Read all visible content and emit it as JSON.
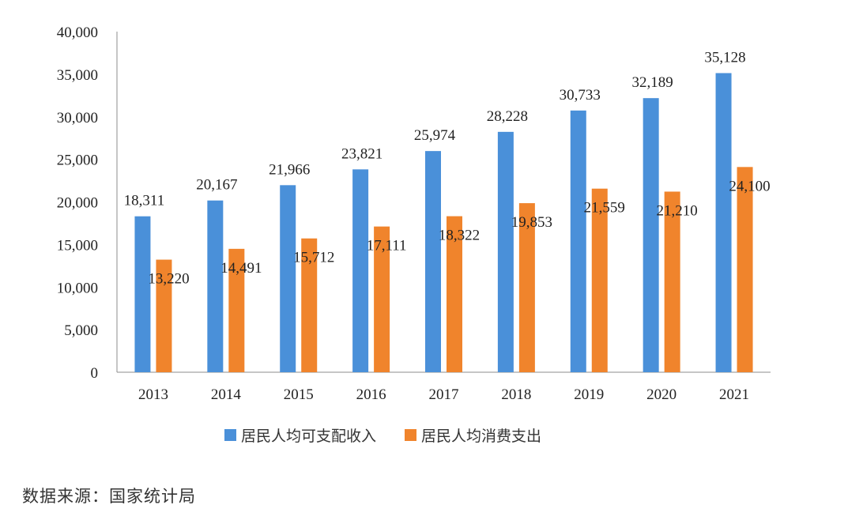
{
  "chart_data": {
    "type": "bar",
    "title": "",
    "xlabel": "",
    "ylabel": "",
    "categories": [
      "2013",
      "2014",
      "2015",
      "2016",
      "2017",
      "2018",
      "2019",
      "2020",
      "2021"
    ],
    "series": [
      {
        "name": "居民人均可支配收入",
        "color": "#4a90d9",
        "values": [
          18311,
          20167,
          21966,
          23821,
          25974,
          28228,
          30733,
          32189,
          35128
        ],
        "labels": [
          "18,311",
          "20,167",
          "21,966",
          "23,821",
          "25,974",
          "28,228",
          "30,733",
          "32,189",
          "35,128"
        ]
      },
      {
        "name": "居民人均消费支出",
        "color": "#f0842c",
        "values": [
          13220,
          14491,
          15712,
          17111,
          18322,
          19853,
          21559,
          21210,
          24100
        ],
        "labels": [
          "13,220",
          "14,491",
          "15,712",
          "17,111",
          "18,322",
          "19,853",
          "21,559",
          "21,210",
          "24,100"
        ]
      }
    ],
    "ylim": [
      0,
      40000
    ],
    "yticks": [
      0,
      5000,
      10000,
      15000,
      20000,
      25000,
      30000,
      35000,
      40000
    ],
    "ytick_labels": [
      "0",
      "5,000",
      "10,000",
      "15,000",
      "20,000",
      "25,000",
      "30,000",
      "35,000",
      "40,000"
    ],
    "grid": false,
    "legend_position": "bottom"
  },
  "legend": {
    "income_label": "居民人均可支配收入",
    "spending_label": "居民人均消费支出"
  },
  "source": {
    "text": "数据来源：国家统计局"
  }
}
